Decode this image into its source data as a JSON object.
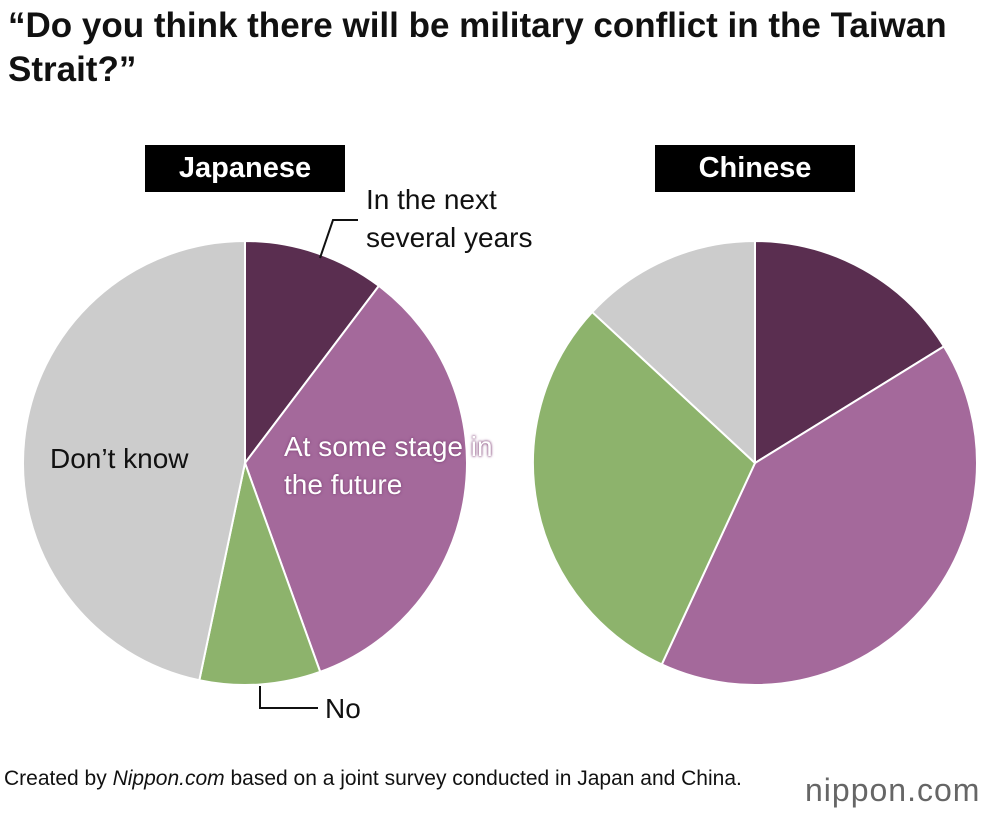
{
  "title": "“Do you think there will be military conflict in the Taiwan Strait?”",
  "chart_data": [
    {
      "type": "pie",
      "title": "Japanese",
      "categories": [
        "In the next several years",
        "At some stage in the future",
        "No",
        "Don’t know"
      ],
      "values": [
        10.3,
        34.2,
        8.8,
        46.7
      ],
      "colors": [
        "#5a2e50",
        "#a4699b",
        "#8db36c",
        "#cccccc"
      ]
    },
    {
      "type": "pie",
      "title": "Chinese",
      "values": [
        16.2,
        40.7,
        30.0,
        13.1
      ],
      "colors": [
        "#5a2e50",
        "#a4699b",
        "#8db36c",
        "#cccccc"
      ]
    }
  ],
  "footer": {
    "prefix": "Created by",
    "source": "Nippon.com",
    "suffix": "based on a joint survey conducted in Japan and China."
  },
  "logo": "nippon.com"
}
